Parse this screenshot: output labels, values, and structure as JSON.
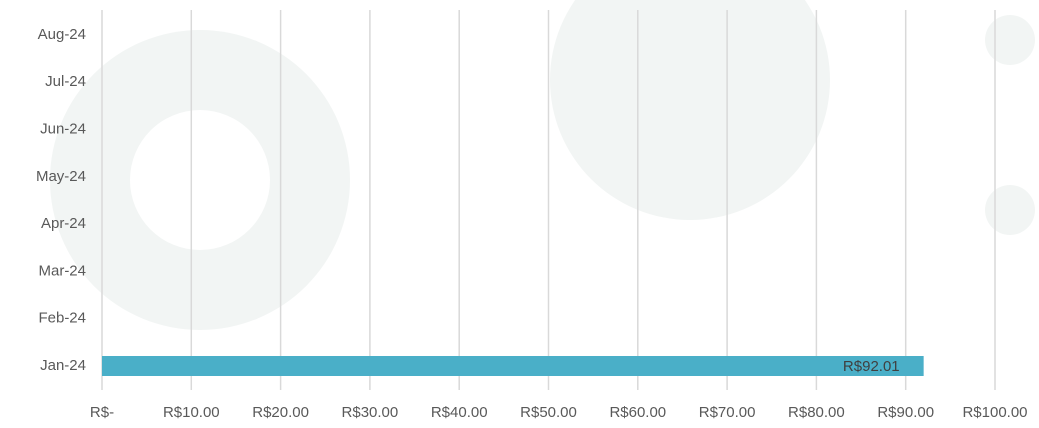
{
  "chart_data": {
    "type": "bar",
    "orientation": "horizontal",
    "categories": [
      "Jan-24",
      "Feb-24",
      "Mar-24",
      "Apr-24",
      "May-24",
      "Jun-24",
      "Jul-24",
      "Aug-24"
    ],
    "values": [
      92.01,
      null,
      null,
      null,
      null,
      null,
      null,
      null
    ],
    "value_labels": [
      "R$92.01",
      null,
      null,
      null,
      null,
      null,
      null,
      null
    ],
    "color": "#4aafc8",
    "xlim": [
      0,
      100
    ],
    "xticks": [
      {
        "value": 0,
        "label": "R$-"
      },
      {
        "value": 10,
        "label": "R$10.00"
      },
      {
        "value": 20,
        "label": "R$20.00"
      },
      {
        "value": 30,
        "label": "R$30.00"
      },
      {
        "value": 40,
        "label": "R$40.00"
      },
      {
        "value": 50,
        "label": "R$50.00"
      },
      {
        "value": 60,
        "label": "R$60.00"
      },
      {
        "value": 70,
        "label": "R$70.00"
      },
      {
        "value": 80,
        "label": "R$80.00"
      },
      {
        "value": 90,
        "label": "R$90.00"
      },
      {
        "value": 100,
        "label": "R$100.00"
      }
    ],
    "grid": true
  }
}
